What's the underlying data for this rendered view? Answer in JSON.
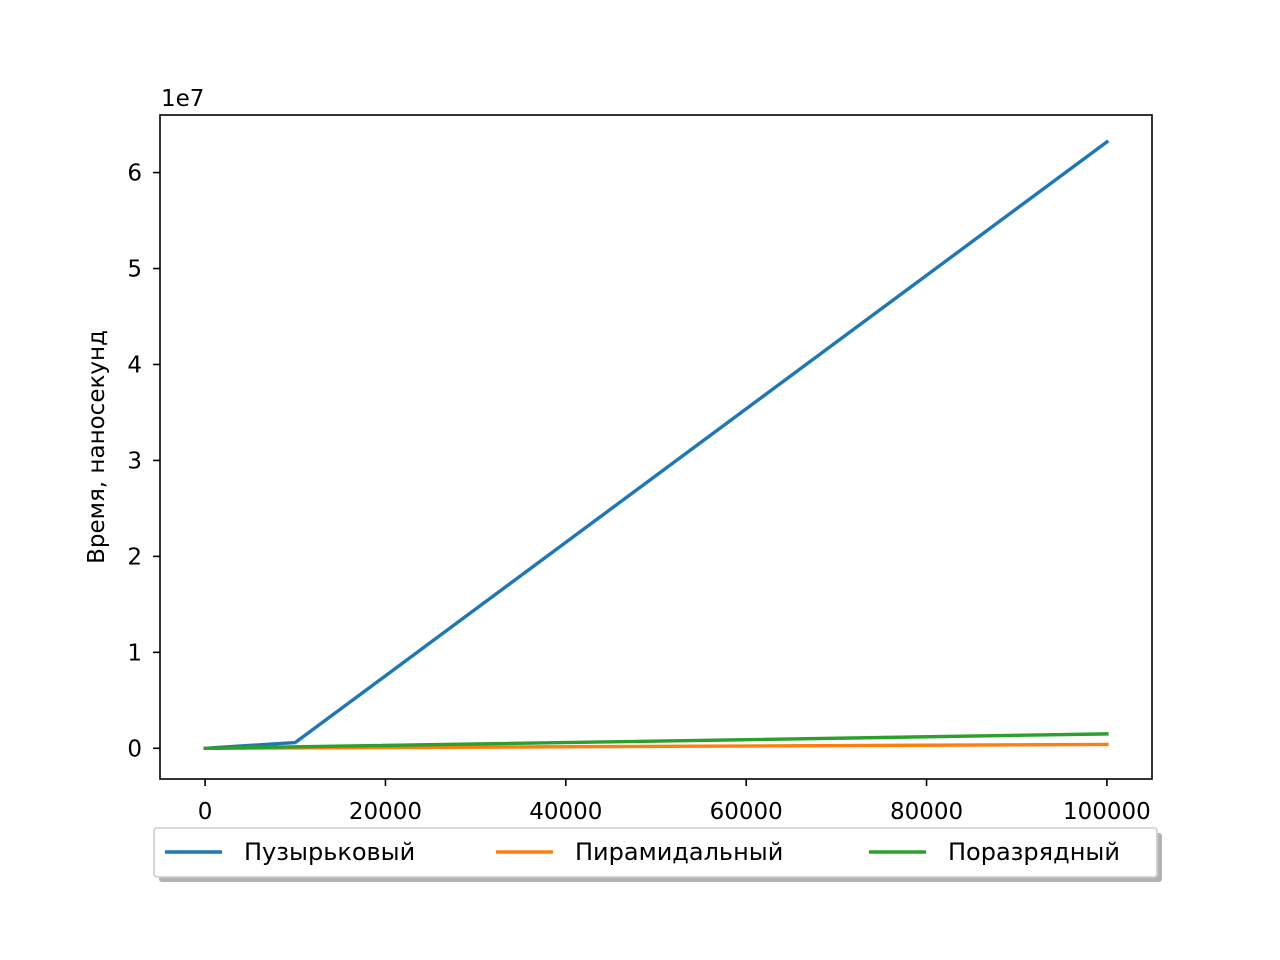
{
  "chart_data": {
    "type": "line",
    "title": "",
    "xlabel": "",
    "ylabel": "Время, наносекунд",
    "y_offset_label": "1e7",
    "y_scale_factor": 10000000,
    "xlim": [
      -5000,
      105000
    ],
    "ylim": [
      -3200000,
      66000000
    ],
    "x_ticks": [
      0,
      20000,
      40000,
      60000,
      80000,
      100000
    ],
    "x_tick_labels": [
      "0",
      "20000",
      "40000",
      "60000",
      "80000",
      "100000"
    ],
    "y_ticks": [
      0,
      10000000,
      20000000,
      30000000,
      40000000,
      50000000,
      60000000
    ],
    "y_tick_labels": [
      "0",
      "1",
      "2",
      "3",
      "4",
      "5",
      "6"
    ],
    "grid": false,
    "legend_placement": "bottom-center",
    "series": [
      {
        "name": "Пузырьковый",
        "color": "#1f77b4",
        "x": [
          10,
          100,
          1000,
          10000,
          100000
        ],
        "y": [
          100,
          2000,
          60000,
          600000,
          63200000
        ]
      },
      {
        "name": "Пирамидальный",
        "color": "#ff7f0e",
        "x": [
          10,
          100,
          1000,
          10000,
          100000
        ],
        "y": [
          100,
          1000,
          5000,
          40000,
          400000
        ]
      },
      {
        "name": "Поразрядный",
        "color": "#2ca02c",
        "x": [
          10,
          100,
          1000,
          10000,
          100000
        ],
        "y": [
          100,
          1000,
          15000,
          150000,
          1500000
        ]
      }
    ]
  }
}
